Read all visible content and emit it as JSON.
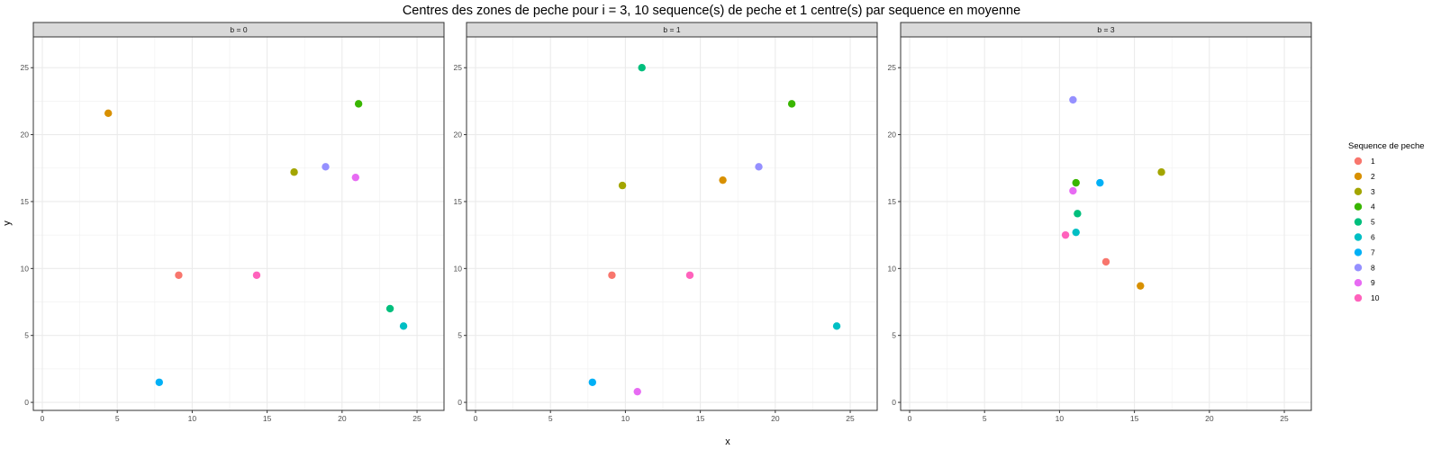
{
  "chart_data": {
    "type": "scatter",
    "title": "Centres des zones de peche pour i = 3, 10 sequence(s) de peche et 1 centre(s) par sequence en moyenne",
    "xlabel": "x",
    "ylabel": "y",
    "xlim": [
      -0.6,
      26.8
    ],
    "ylim": [
      -0.6,
      27.3
    ],
    "x_ticks": [
      "0",
      "5",
      "10",
      "15",
      "20",
      "25"
    ],
    "y_ticks": [
      "0",
      "5",
      "10",
      "15",
      "20",
      "25"
    ],
    "grid": true,
    "legend": {
      "title": "Sequence de peche",
      "position": "right",
      "entries": [
        {
          "label": "1",
          "color": "#F8766D"
        },
        {
          "label": "2",
          "color": "#D89000"
        },
        {
          "label": "3",
          "color": "#A3A500"
        },
        {
          "label": "4",
          "color": "#39B600"
        },
        {
          "label": "5",
          "color": "#00BF7D"
        },
        {
          "label": "6",
          "color": "#00BFC4"
        },
        {
          "label": "7",
          "color": "#00B0F6"
        },
        {
          "label": "8",
          "color": "#9590FF"
        },
        {
          "label": "9",
          "color": "#E76BF3"
        },
        {
          "label": "10",
          "color": "#FF62BC"
        }
      ]
    },
    "panels": [
      {
        "strip": "b = 0",
        "points": [
          {
            "seq": "1",
            "x": 9.1,
            "y": 9.5
          },
          {
            "seq": "2",
            "x": 4.4,
            "y": 21.6
          },
          {
            "seq": "3",
            "x": 16.8,
            "y": 17.2
          },
          {
            "seq": "4",
            "x": 21.1,
            "y": 22.3
          },
          {
            "seq": "5",
            "x": 23.2,
            "y": 7.0
          },
          {
            "seq": "6",
            "x": 24.1,
            "y": 5.7
          },
          {
            "seq": "7",
            "x": 7.8,
            "y": 1.5
          },
          {
            "seq": "8",
            "x": 18.9,
            "y": 17.6
          },
          {
            "seq": "9",
            "x": 20.9,
            "y": 16.8
          },
          {
            "seq": "10",
            "x": 14.3,
            "y": 9.5
          }
        ]
      },
      {
        "strip": "b = 1",
        "points": [
          {
            "seq": "1",
            "x": 9.1,
            "y": 9.5
          },
          {
            "seq": "2",
            "x": 16.5,
            "y": 16.6
          },
          {
            "seq": "3",
            "x": 9.8,
            "y": 16.2
          },
          {
            "seq": "4",
            "x": 21.1,
            "y": 22.3
          },
          {
            "seq": "5",
            "x": 11.1,
            "y": 25.0
          },
          {
            "seq": "6",
            "x": 24.1,
            "y": 5.7
          },
          {
            "seq": "7",
            "x": 7.8,
            "y": 1.5
          },
          {
            "seq": "8",
            "x": 18.9,
            "y": 17.6
          },
          {
            "seq": "9",
            "x": 10.8,
            "y": 0.8
          },
          {
            "seq": "10",
            "x": 14.3,
            "y": 9.5
          }
        ]
      },
      {
        "strip": "b = 3",
        "points": [
          {
            "seq": "1",
            "x": 13.1,
            "y": 10.5
          },
          {
            "seq": "2",
            "x": 15.4,
            "y": 8.7
          },
          {
            "seq": "3",
            "x": 16.8,
            "y": 17.2
          },
          {
            "seq": "4",
            "x": 11.1,
            "y": 16.4
          },
          {
            "seq": "5",
            "x": 11.2,
            "y": 14.1
          },
          {
            "seq": "6",
            "x": 11.1,
            "y": 12.7
          },
          {
            "seq": "7",
            "x": 12.7,
            "y": 16.4
          },
          {
            "seq": "8",
            "x": 10.9,
            "y": 22.6
          },
          {
            "seq": "9",
            "x": 10.9,
            "y": 15.8
          },
          {
            "seq": "10",
            "x": 10.4,
            "y": 12.5
          }
        ]
      }
    ]
  }
}
